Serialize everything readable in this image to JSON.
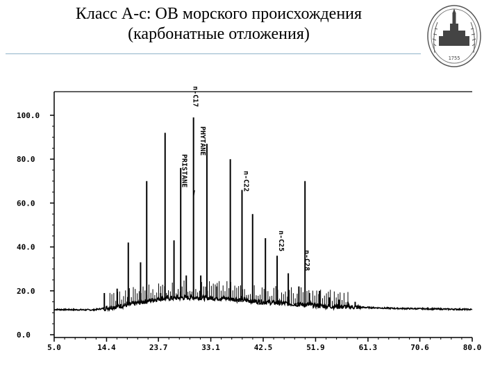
{
  "header": {
    "title_line1": "Класс А-с: ОВ морского происхождения",
    "title_line2": "(карбонатные отложения)",
    "emblem_text": "1755"
  },
  "chart_data": {
    "type": "line",
    "title": "",
    "xlabel": "",
    "ylabel": "",
    "xlim": [
      5.0,
      80.0
    ],
    "ylim": [
      0.0,
      100.0
    ],
    "x_ticks": [
      "5.0",
      "14.4",
      "23.7",
      "33.1",
      "42.5",
      "51.9",
      "61.3",
      "70.6",
      "80.0"
    ],
    "y_ticks": [
      "0.0",
      "20.0",
      "40.0",
      "60.0",
      "80.0",
      "100.0"
    ],
    "grid": false,
    "baseline": [
      [
        5.0,
        11.5
      ],
      [
        12.0,
        11.3
      ],
      [
        18.0,
        13.5
      ],
      [
        24.0,
        16.5
      ],
      [
        30.0,
        17.0
      ],
      [
        36.0,
        16.5
      ],
      [
        42.0,
        15.0
      ],
      [
        48.0,
        14.0
      ],
      [
        54.0,
        13.0
      ],
      [
        60.0,
        12.5
      ],
      [
        66.0,
        12.0
      ],
      [
        80.0,
        11.5
      ]
    ],
    "peaks": [
      {
        "x": 14.0,
        "y": 19
      },
      {
        "x": 16.3,
        "y": 21
      },
      {
        "x": 18.3,
        "y": 42
      },
      {
        "x": 20.5,
        "y": 33
      },
      {
        "x": 21.6,
        "y": 70
      },
      {
        "x": 24.1,
        "y": 19
      },
      {
        "x": 24.9,
        "y": 92
      },
      {
        "x": 26.5,
        "y": 43
      },
      {
        "x": 27.7,
        "y": 76
      },
      {
        "x": 28.7,
        "y": 27
      },
      {
        "x": 30.0,
        "y": 99
      },
      {
        "x": 31.3,
        "y": 27
      },
      {
        "x": 32.4,
        "y": 87
      },
      {
        "x": 34.2,
        "y": 22
      },
      {
        "x": 36.6,
        "y": 80
      },
      {
        "x": 38.7,
        "y": 66
      },
      {
        "x": 40.6,
        "y": 55
      },
      {
        "x": 42.9,
        "y": 44
      },
      {
        "x": 45.0,
        "y": 36
      },
      {
        "x": 47.0,
        "y": 28
      },
      {
        "x": 48.9,
        "y": 22
      },
      {
        "x": 50.0,
        "y": 70
      },
      {
        "x": 50.8,
        "y": 19
      },
      {
        "x": 52.6,
        "y": 20
      },
      {
        "x": 54.4,
        "y": 17
      },
      {
        "x": 56.1,
        "y": 16
      },
      {
        "x": 57.7,
        "y": 15
      },
      {
        "x": 59.0,
        "y": 15
      }
    ],
    "annotations": [
      "n-C17",
      "PHYTANE",
      "PRISTANE",
      "n-C22",
      "n-C25",
      "n-C28"
    ]
  }
}
